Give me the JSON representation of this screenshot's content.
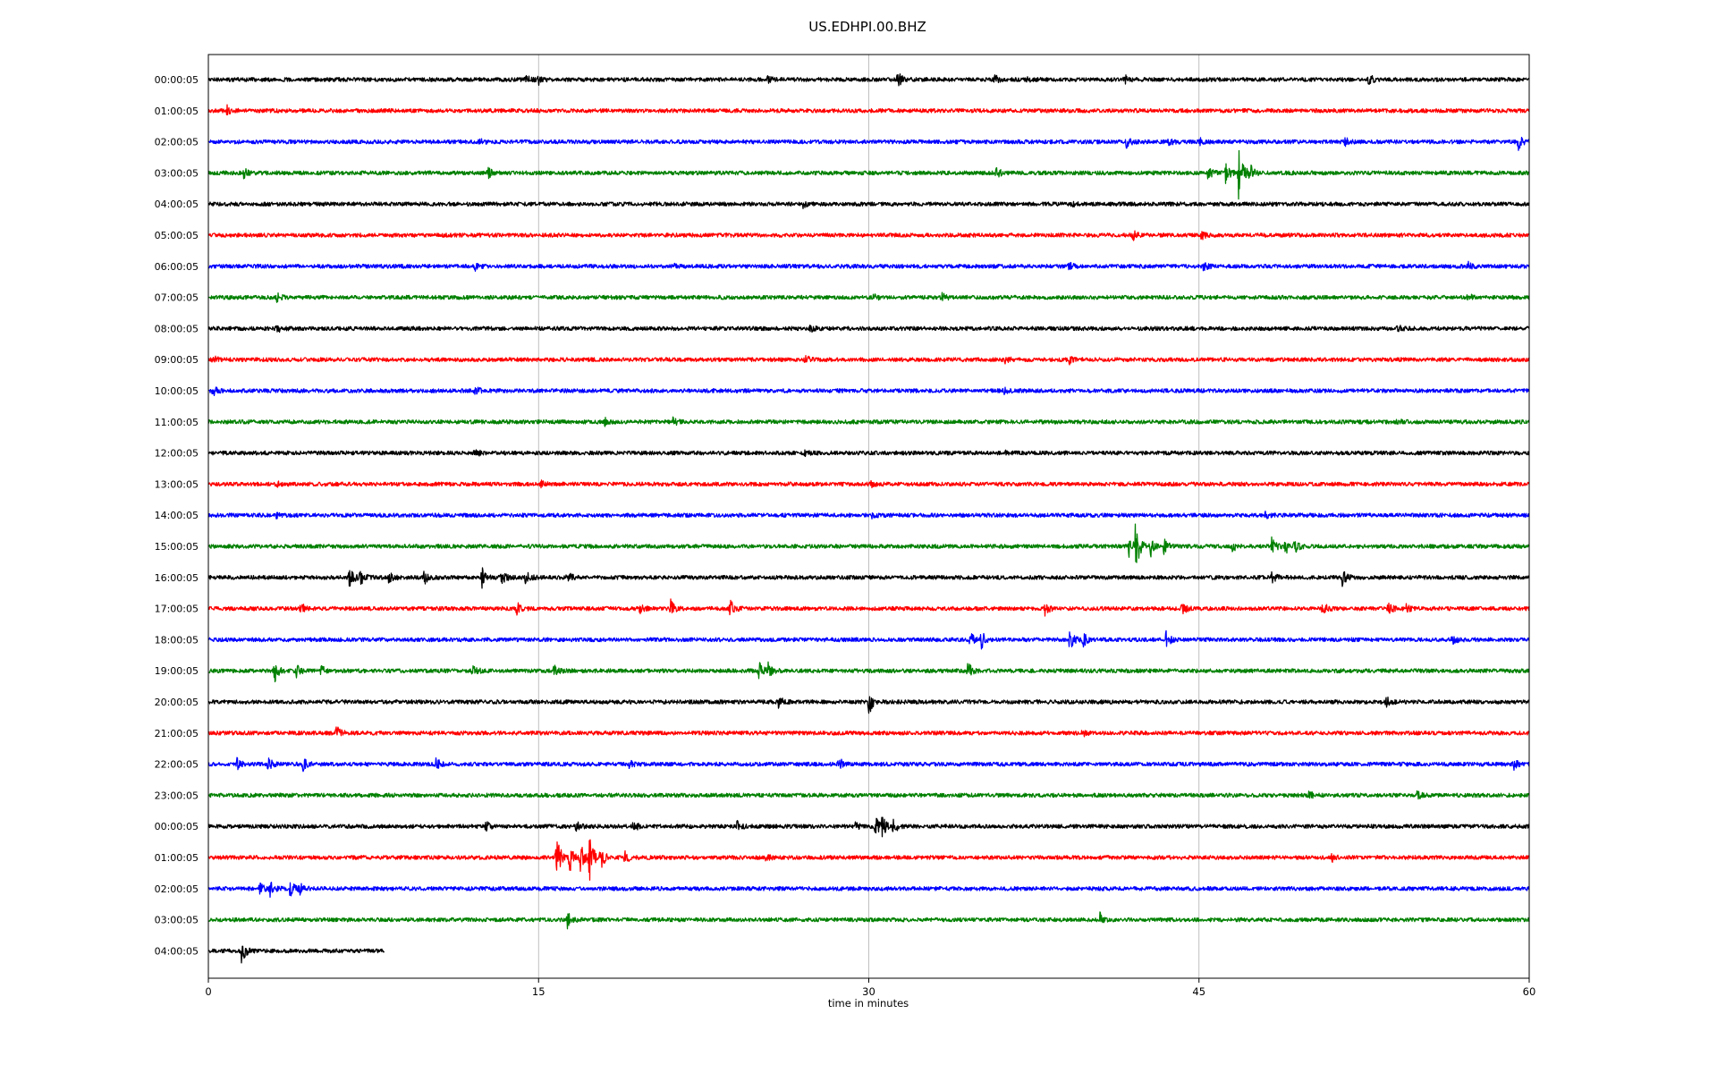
{
  "chart_data": {
    "type": "line",
    "title": "US.EDHPI.00.BHZ",
    "xlabel": "time in minutes",
    "ylabel": "",
    "xlim": [
      0,
      60
    ],
    "x_ticks": [
      0,
      15,
      30,
      45,
      60
    ],
    "x_tick_labels": [
      "0",
      "15",
      "30",
      "45",
      "60"
    ],
    "grid": "vertical",
    "colors": [
      "#000000",
      "#ff0000",
      "#0000ff",
      "#008000"
    ],
    "series": [
      {
        "label": "00:00:05",
        "color": "#000000",
        "end_minute": 60,
        "noise": 1.0,
        "events": [
          {
            "t": 14.4,
            "amp": 1.0
          },
          {
            "t": 15.0,
            "amp": 0.7
          },
          {
            "t": 25.4,
            "amp": 0.6
          },
          {
            "t": 31.3,
            "amp": 1.6
          },
          {
            "t": 35.7,
            "amp": 0.9
          },
          {
            "t": 37.2,
            "amp": 0.8
          },
          {
            "t": 41.6,
            "amp": 0.9
          },
          {
            "t": 52.7,
            "amp": 1.2
          }
        ]
      },
      {
        "label": "01:00:05",
        "color": "#ff0000",
        "end_minute": 60,
        "noise": 1.0,
        "events": [
          {
            "t": 0.8,
            "amp": 1.2
          }
        ]
      },
      {
        "label": "02:00:05",
        "color": "#0000ff",
        "end_minute": 60,
        "noise": 1.0,
        "events": [
          {
            "t": 12.3,
            "amp": 0.6
          },
          {
            "t": 41.7,
            "amp": 1.0
          },
          {
            "t": 43.6,
            "amp": 0.8
          },
          {
            "t": 45.0,
            "amp": 0.7
          },
          {
            "t": 51.6,
            "amp": 0.8
          },
          {
            "t": 59.5,
            "amp": 1.4
          }
        ]
      },
      {
        "label": "03:00:05",
        "color": "#008000",
        "end_minute": 60,
        "noise": 1.0,
        "events": [
          {
            "t": 1.6,
            "amp": 0.9
          },
          {
            "t": 12.7,
            "amp": 0.9
          },
          {
            "t": 35.8,
            "amp": 1.0
          },
          {
            "t": 45.4,
            "amp": 1.2
          },
          {
            "t": 46.2,
            "amp": 1.8
          },
          {
            "t": 46.8,
            "amp": 5.5
          },
          {
            "t": 47.3,
            "amp": 1.5
          }
        ]
      },
      {
        "label": "04:00:05",
        "color": "#000000",
        "end_minute": 60,
        "noise": 1.0,
        "events": [
          {
            "t": 27.0,
            "amp": 0.6
          },
          {
            "t": 39.2,
            "amp": 0.6
          }
        ]
      },
      {
        "label": "05:00:05",
        "color": "#ff0000",
        "end_minute": 60,
        "noise": 1.0,
        "events": [
          {
            "t": 42.0,
            "amp": 0.8
          },
          {
            "t": 45.1,
            "amp": 0.8
          }
        ]
      },
      {
        "label": "06:00:05",
        "color": "#0000ff",
        "end_minute": 60,
        "noise": 1.0,
        "events": [
          {
            "t": 12.1,
            "amp": 0.7
          },
          {
            "t": 21.1,
            "amp": 0.7
          },
          {
            "t": 39.1,
            "amp": 0.7
          },
          {
            "t": 45.2,
            "amp": 0.8
          },
          {
            "t": 57.2,
            "amp": 0.7
          }
        ]
      },
      {
        "label": "07:00:05",
        "color": "#008000",
        "end_minute": 60,
        "noise": 1.0,
        "events": [
          {
            "t": 3.1,
            "amp": 0.8
          },
          {
            "t": 30.2,
            "amp": 0.7
          },
          {
            "t": 33.3,
            "amp": 0.9
          },
          {
            "t": 57.2,
            "amp": 0.7
          }
        ]
      },
      {
        "label": "08:00:05",
        "color": "#000000",
        "end_minute": 60,
        "noise": 1.0,
        "events": [
          {
            "t": 3.1,
            "amp": 0.8
          },
          {
            "t": 27.3,
            "amp": 0.7
          },
          {
            "t": 54.0,
            "amp": 0.7
          }
        ]
      },
      {
        "label": "09:00:05",
        "color": "#ff0000",
        "end_minute": 60,
        "noise": 1.0,
        "events": [
          {
            "t": 0.2,
            "amp": 0.8
          },
          {
            "t": 27.1,
            "amp": 0.7
          },
          {
            "t": 36.2,
            "amp": 0.7
          },
          {
            "t": 39.1,
            "amp": 0.8
          }
        ]
      },
      {
        "label": "10:00:05",
        "color": "#0000ff",
        "end_minute": 60,
        "noise": 1.0,
        "events": [
          {
            "t": 0.2,
            "amp": 0.8
          },
          {
            "t": 12.1,
            "amp": 0.9
          },
          {
            "t": 36.1,
            "amp": 0.6
          }
        ]
      },
      {
        "label": "11:00:05",
        "color": "#008000",
        "end_minute": 60,
        "noise": 1.0,
        "events": [
          {
            "t": 18.0,
            "amp": 0.7
          },
          {
            "t": 21.1,
            "amp": 0.8
          },
          {
            "t": 54.0,
            "amp": 0.7
          }
        ]
      },
      {
        "label": "12:00:05",
        "color": "#000000",
        "end_minute": 60,
        "noise": 1.0,
        "events": [
          {
            "t": 12.1,
            "amp": 0.7
          },
          {
            "t": 27.1,
            "amp": 0.7
          },
          {
            "t": 36.1,
            "amp": 0.8
          }
        ]
      },
      {
        "label": "13:00:05",
        "color": "#ff0000",
        "end_minute": 60,
        "noise": 1.0,
        "events": [
          {
            "t": 3.1,
            "amp": 0.6
          },
          {
            "t": 15.1,
            "amp": 0.6
          },
          {
            "t": 30.1,
            "amp": 0.6
          }
        ]
      },
      {
        "label": "14:00:05",
        "color": "#0000ff",
        "end_minute": 60,
        "noise": 1.0,
        "events": [
          {
            "t": 3.1,
            "amp": 0.6
          },
          {
            "t": 30.1,
            "amp": 0.6
          },
          {
            "t": 48.0,
            "amp": 0.5
          }
        ]
      },
      {
        "label": "15:00:05",
        "color": "#008000",
        "end_minute": 60,
        "noise": 1.0,
        "events": [
          {
            "t": 41.8,
            "amp": 2.0
          },
          {
            "t": 42.1,
            "amp": 5.0
          },
          {
            "t": 42.8,
            "amp": 2.0
          },
          {
            "t": 43.4,
            "amp": 1.5
          },
          {
            "t": 46.5,
            "amp": 1.0
          },
          {
            "t": 48.3,
            "amp": 1.8
          },
          {
            "t": 48.9,
            "amp": 1.6
          },
          {
            "t": 49.3,
            "amp": 1.4
          }
        ]
      },
      {
        "label": "16:00:05",
        "color": "#000000",
        "end_minute": 60,
        "noise": 1.0,
        "events": [
          {
            "t": 6.4,
            "amp": 2.0
          },
          {
            "t": 6.9,
            "amp": 1.5
          },
          {
            "t": 8.2,
            "amp": 1.2
          },
          {
            "t": 9.8,
            "amp": 1.2
          },
          {
            "t": 12.4,
            "amp": 2.0
          },
          {
            "t": 13.3,
            "amp": 1.4
          },
          {
            "t": 14.4,
            "amp": 1.2
          },
          {
            "t": 16.3,
            "amp": 1.4
          },
          {
            "t": 48.3,
            "amp": 1.0
          },
          {
            "t": 51.5,
            "amp": 1.4
          }
        ]
      },
      {
        "label": "17:00:05",
        "color": "#ff0000",
        "end_minute": 60,
        "noise": 1.0,
        "events": [
          {
            "t": 4.2,
            "amp": 1.0
          },
          {
            "t": 14.0,
            "amp": 1.3
          },
          {
            "t": 19.6,
            "amp": 1.0
          },
          {
            "t": 21.0,
            "amp": 1.5
          },
          {
            "t": 23.7,
            "amp": 1.6
          },
          {
            "t": 38.0,
            "amp": 1.3
          },
          {
            "t": 44.2,
            "amp": 1.3
          },
          {
            "t": 50.6,
            "amp": 1.4
          },
          {
            "t": 53.6,
            "amp": 1.5
          },
          {
            "t": 54.3,
            "amp": 1.3
          }
        ]
      },
      {
        "label": "18:00:05",
        "color": "#0000ff",
        "end_minute": 60,
        "noise": 1.0,
        "events": [
          {
            "t": 34.6,
            "amp": 1.3
          },
          {
            "t": 35.1,
            "amp": 1.6
          },
          {
            "t": 39.1,
            "amp": 2.2
          },
          {
            "t": 39.7,
            "amp": 1.6
          },
          {
            "t": 43.5,
            "amp": 1.5
          },
          {
            "t": 56.5,
            "amp": 1.0
          }
        ]
      },
      {
        "label": "19:00:05",
        "color": "#008000",
        "end_minute": 60,
        "noise": 1.0,
        "events": [
          {
            "t": 3.0,
            "amp": 2.0
          },
          {
            "t": 4.0,
            "amp": 1.1
          },
          {
            "t": 5.1,
            "amp": 1.1
          },
          {
            "t": 12.0,
            "amp": 1.4
          },
          {
            "t": 15.7,
            "amp": 1.2
          },
          {
            "t": 25.0,
            "amp": 2.0
          },
          {
            "t": 25.4,
            "amp": 1.4
          },
          {
            "t": 34.5,
            "amp": 1.6
          }
        ]
      },
      {
        "label": "20:00:05",
        "color": "#000000",
        "end_minute": 60,
        "noise": 1.0,
        "events": [
          {
            "t": 25.9,
            "amp": 1.2
          },
          {
            "t": 30.0,
            "amp": 2.6
          },
          {
            "t": 53.5,
            "amp": 0.9
          }
        ]
      },
      {
        "label": "21:00:05",
        "color": "#ff0000",
        "end_minute": 60,
        "noise": 1.0,
        "events": [
          {
            "t": 5.8,
            "amp": 1.5
          },
          {
            "t": 39.7,
            "amp": 0.7
          }
        ]
      },
      {
        "label": "22:00:05",
        "color": "#0000ff",
        "end_minute": 60,
        "noise": 1.0,
        "events": [
          {
            "t": 1.3,
            "amp": 1.0
          },
          {
            "t": 2.7,
            "amp": 1.2
          },
          {
            "t": 4.3,
            "amp": 1.3
          },
          {
            "t": 10.3,
            "amp": 1.4
          },
          {
            "t": 19.1,
            "amp": 0.8
          },
          {
            "t": 28.6,
            "amp": 1.6
          },
          {
            "t": 59.3,
            "amp": 0.9
          }
        ]
      },
      {
        "label": "23:00:05",
        "color": "#008000",
        "end_minute": 60,
        "noise": 1.0,
        "events": [
          {
            "t": 50.0,
            "amp": 0.8
          },
          {
            "t": 54.9,
            "amp": 0.8
          }
        ]
      },
      {
        "label": "00:00:05",
        "color": "#000000",
        "end_minute": 60,
        "noise": 1.0,
        "events": [
          {
            "t": 12.6,
            "amp": 0.8
          },
          {
            "t": 16.7,
            "amp": 1.0
          },
          {
            "t": 19.3,
            "amp": 1.0
          },
          {
            "t": 24.0,
            "amp": 1.0
          },
          {
            "t": 29.4,
            "amp": 1.0
          },
          {
            "t": 30.3,
            "amp": 1.8
          },
          {
            "t": 30.6,
            "amp": 2.0
          },
          {
            "t": 31.1,
            "amp": 1.4
          }
        ]
      },
      {
        "label": "01:00:05",
        "color": "#ff0000",
        "end_minute": 60,
        "noise": 1.0,
        "events": [
          {
            "t": 15.8,
            "amp": 4.5
          },
          {
            "t": 16.4,
            "amp": 3.0
          },
          {
            "t": 16.9,
            "amp": 2.6
          },
          {
            "t": 17.3,
            "amp": 4.5
          },
          {
            "t": 17.8,
            "amp": 2.2
          },
          {
            "t": 18.9,
            "amp": 1.2
          },
          {
            "t": 25.3,
            "amp": 0.6
          },
          {
            "t": 51.0,
            "amp": 0.8
          }
        ]
      },
      {
        "label": "02:00:05",
        "color": "#0000ff",
        "end_minute": 60,
        "noise": 1.0,
        "events": [
          {
            "t": 2.3,
            "amp": 1.4
          },
          {
            "t": 2.8,
            "amp": 1.2
          },
          {
            "t": 3.7,
            "amp": 1.6
          },
          {
            "t": 4.1,
            "amp": 1.3
          }
        ]
      },
      {
        "label": "03:00:05",
        "color": "#008000",
        "end_minute": 60,
        "noise": 1.0,
        "events": [
          {
            "t": 16.3,
            "amp": 1.6
          },
          {
            "t": 40.5,
            "amp": 1.2
          }
        ]
      },
      {
        "label": "04:00:05",
        "color": "#000000",
        "end_minute": 8.0,
        "noise": 1.0,
        "events": [
          {
            "t": 1.5,
            "amp": 2.4
          }
        ]
      }
    ]
  }
}
